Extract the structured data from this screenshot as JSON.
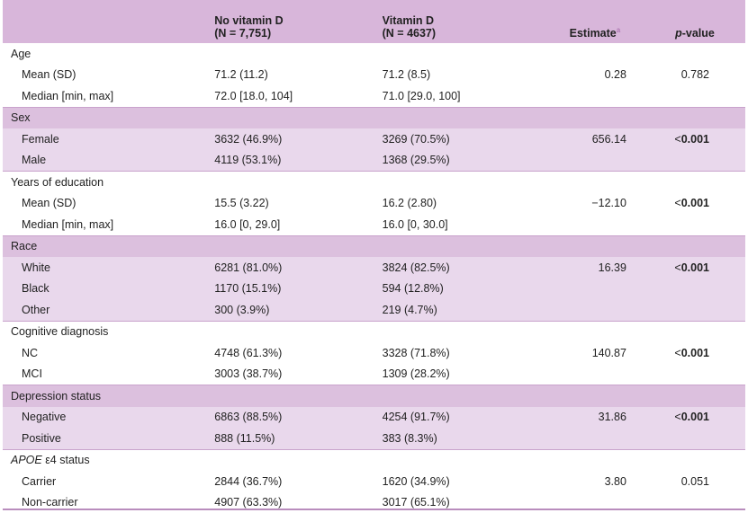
{
  "header": {
    "col1_line1": "No vitamin D",
    "col1_line2": "(N = 7,751)",
    "col2_line1": "Vitamin D",
    "col2_line2": "(N = 4637)",
    "estimate": "Estimate",
    "estimate_note": "a",
    "pvalue": "p-value"
  },
  "sections": [
    {
      "title": "Age",
      "rows": [
        {
          "label": "Mean (SD)",
          "no_vitd": "71.2 (11.2)",
          "vitd": "71.2 (8.5)",
          "estimate": "0.28",
          "p": "0.782",
          "p_bold": false
        },
        {
          "label": "Median [min, max]",
          "no_vitd": "72.0 [18.0, 104]",
          "vitd": "71.0 [29.0, 100]",
          "estimate": "",
          "p": "",
          "p_bold": false
        }
      ]
    },
    {
      "title": "Sex",
      "rows": [
        {
          "label": "Female",
          "no_vitd": "3632 (46.9%)",
          "vitd": "3269 (70.5%)",
          "estimate": "656.14",
          "p": "0.001",
          "p_bold": true
        },
        {
          "label": "Male",
          "no_vitd": "4119 (53.1%)",
          "vitd": "1368 (29.5%)",
          "estimate": "",
          "p": "",
          "p_bold": false
        }
      ]
    },
    {
      "title": "Years of education",
      "rows": [
        {
          "label": "Mean (SD)",
          "no_vitd": "15.5 (3.22)",
          "vitd": "16.2 (2.80)",
          "estimate": "−12.10",
          "p": "0.001",
          "p_bold": true
        },
        {
          "label": "Median [min, max]",
          "no_vitd": "16.0 [0, 29.0]",
          "vitd": "16.0 [0, 30.0]",
          "estimate": "",
          "p": "",
          "p_bold": false
        }
      ]
    },
    {
      "title": "Race",
      "rows": [
        {
          "label": "White",
          "no_vitd": "6281 (81.0%)",
          "vitd": "3824 (82.5%)",
          "estimate": "16.39",
          "p": "0.001",
          "p_bold": true
        },
        {
          "label": "Black",
          "no_vitd": "1170 (15.1%)",
          "vitd": "594 (12.8%)",
          "estimate": "",
          "p": "",
          "p_bold": false
        },
        {
          "label": "Other",
          "no_vitd": "300 (3.9%)",
          "vitd": "219 (4.7%)",
          "estimate": "",
          "p": "",
          "p_bold": false
        }
      ]
    },
    {
      "title": "Cognitive diagnosis",
      "rows": [
        {
          "label": "NC",
          "no_vitd": "4748 (61.3%)",
          "vitd": "3328 (71.8%)",
          "estimate": "140.87",
          "p": "0.001",
          "p_bold": true
        },
        {
          "label": "MCI",
          "no_vitd": "3003 (38.7%)",
          "vitd": "1309 (28.2%)",
          "estimate": "",
          "p": "",
          "p_bold": false
        }
      ]
    },
    {
      "title": "Depression status",
      "rows": [
        {
          "label": "Negative",
          "no_vitd": "6863 (88.5%)",
          "vitd": "4254 (91.7%)",
          "estimate": "31.86",
          "p": "0.001",
          "p_bold": true
        },
        {
          "label": "Positive",
          "no_vitd": "888 (11.5%)",
          "vitd": "383 (8.3%)",
          "estimate": "",
          "p": "",
          "p_bold": false
        }
      ]
    },
    {
      "title_italic": "APOE",
      "title_rest": " ε4 status",
      "rows": [
        {
          "label": "Carrier",
          "no_vitd": "2844 (36.7%)",
          "vitd": "1620 (34.9%)",
          "estimate": "3.80",
          "p": "0.051",
          "p_bold": false
        },
        {
          "label": "Non-carrier",
          "no_vitd": "4907 (63.3%)",
          "vitd": "3017 (65.1%)",
          "estimate": "",
          "p": "",
          "p_bold": false
        }
      ]
    }
  ],
  "colors": {
    "header_bg": "#d8b6da",
    "shade_row": "#e9d8ec",
    "shade_head": "#dcc0de",
    "footnote_mark": "#b07ab4"
  }
}
